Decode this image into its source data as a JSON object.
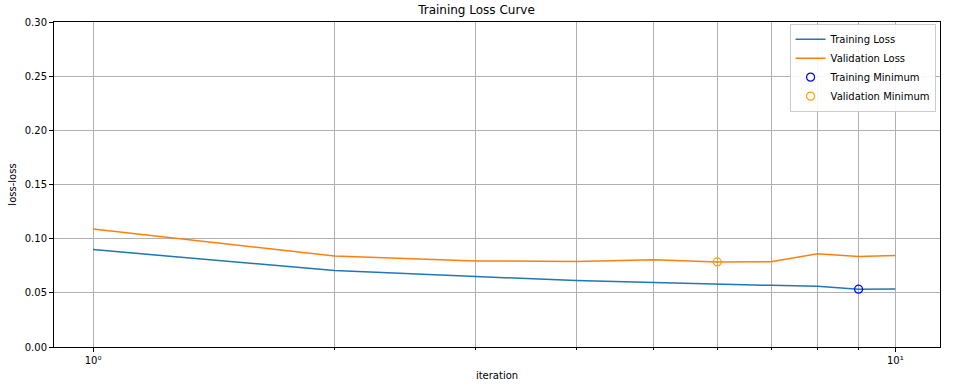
{
  "chart_data": {
    "type": "line",
    "title": "Training Loss Curve",
    "x_label": "iteration",
    "y_label": "loss-loss",
    "log": "x",
    "grid": true,
    "legend": "upper right",
    "xlim": [
      0.894,
      11.37
    ],
    "xticks": [
      {
        "value": 1,
        "label": "10⁰"
      },
      {
        "value": 10,
        "label": "10¹"
      }
    ],
    "xminor_ticks": [
      2,
      3,
      4,
      5,
      6,
      7,
      8,
      9
    ],
    "ylim": [
      0,
      0.3
    ],
    "yticks": [
      {
        "value": 0,
        "label": "0.00"
      },
      {
        "value": 0.05,
        "label": "0.05"
      },
      {
        "value": 0.1,
        "label": "0.10"
      },
      {
        "value": 0.15,
        "label": "0.15"
      },
      {
        "value": 0.2,
        "label": "0.20"
      },
      {
        "value": 0.25,
        "label": "0.25"
      },
      {
        "value": 0.3,
        "label": "0.30"
      }
    ],
    "series": [
      {
        "name": "Training Loss",
        "color": "#1f77b4",
        "line_style": "solid",
        "x": [
          1,
          2,
          3,
          4,
          5,
          6,
          7,
          8,
          9,
          10
        ],
        "values": [
          0.0899,
          0.0706,
          0.065,
          0.0615,
          0.0596,
          0.0578,
          0.0569,
          0.056,
          0.0534,
          0.0536
        ]
      },
      {
        "name": "Validation Loss",
        "color": "#ff7f0e",
        "line_style": "solid",
        "x": [
          1,
          2,
          3,
          4,
          5,
          6,
          7,
          8,
          9,
          10
        ],
        "values": [
          0.109,
          0.084,
          0.0795,
          0.079,
          0.0805,
          0.0785,
          0.0788,
          0.086,
          0.0835,
          0.0845
        ]
      },
      {
        "name": "Training Minimum",
        "color": "blue",
        "marker": "circle-open",
        "line_style": "solid",
        "x": [
          9
        ],
        "values": [
          0.0534
        ]
      },
      {
        "name": "Validation Minimum",
        "color": "orange",
        "marker": "circle-open",
        "line_style": "solid",
        "x": [
          6
        ],
        "values": [
          0.0785
        ]
      }
    ]
  }
}
